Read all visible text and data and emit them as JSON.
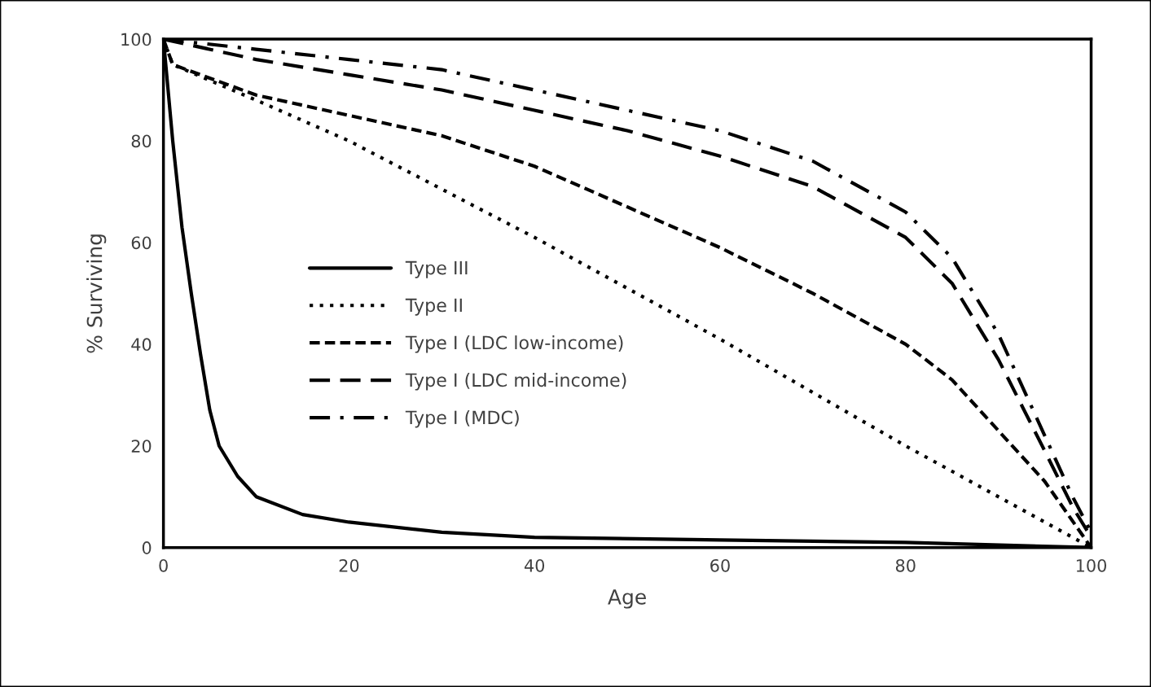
{
  "chart_data": {
    "type": "line",
    "xlabel": "Age",
    "ylabel": "% Surviving",
    "xlim": [
      0,
      100
    ],
    "ylim": [
      0,
      100
    ],
    "xticks": [
      0,
      20,
      40,
      60,
      80,
      100
    ],
    "yticks": [
      0,
      20,
      40,
      60,
      80,
      100
    ],
    "grid": false,
    "legend": "left",
    "marker": "none",
    "series": [
      {
        "name": "Type III",
        "color": "#000000",
        "line_style": "solid",
        "x": [
          0,
          1,
          2,
          3,
          4,
          5,
          6,
          8,
          10,
          15,
          20,
          30,
          40,
          60,
          80,
          100
        ],
        "values": [
          100,
          80,
          63,
          50,
          38,
          27,
          20,
          14,
          10,
          6.5,
          5,
          3,
          2,
          1.5,
          1,
          0
        ]
      },
      {
        "name": "Type II",
        "color": "#000000",
        "line_style": "dotted",
        "x": [
          0,
          1,
          10,
          20,
          40,
          60,
          80,
          100
        ],
        "values": [
          100,
          95,
          88,
          80,
          61,
          41,
          20,
          0
        ]
      },
      {
        "name": "Type I (LDC low-income)",
        "color": "#000000",
        "line_style": "dashed",
        "x": [
          0,
          1,
          10,
          20,
          30,
          40,
          50,
          60,
          70,
          80,
          85,
          90,
          95,
          100
        ],
        "values": [
          100,
          95,
          89,
          85,
          81,
          75,
          67,
          59,
          50,
          40,
          33,
          23,
          13,
          0
        ]
      },
      {
        "name": "Type I (LDC mid-income)",
        "color": "#000000",
        "line_style": "longdash",
        "x": [
          0,
          10,
          20,
          30,
          40,
          50,
          60,
          70,
          80,
          85,
          90,
          95,
          98,
          100
        ],
        "values": [
          100,
          96,
          93,
          90,
          86,
          82,
          77,
          71,
          61,
          52,
          37,
          19,
          8,
          2
        ]
      },
      {
        "name": "Type I (MDC)",
        "color": "#000000",
        "line_style": "dashdot",
        "x": [
          0,
          10,
          20,
          30,
          40,
          50,
          60,
          70,
          80,
          85,
          90,
          95,
          98,
          100
        ],
        "values": [
          100,
          98,
          96,
          94,
          90,
          86,
          82,
          76,
          66,
          57,
          42,
          22,
          10,
          3
        ]
      }
    ]
  }
}
